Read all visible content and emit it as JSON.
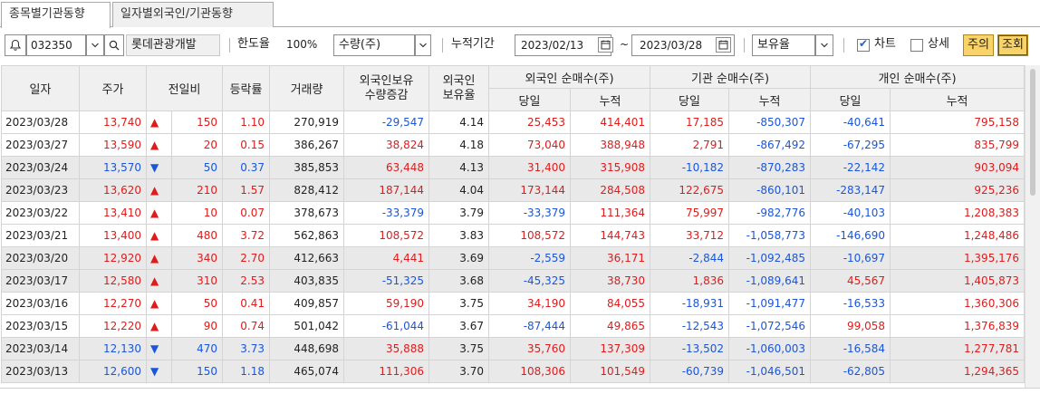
{
  "tabs": [
    "종목별기관동향",
    "일자별외국인/기관동향"
  ],
  "toolbar": {
    "code": "032350",
    "stock_name": "롯데관광개발",
    "limit_label": "한도율",
    "limit_value": "100%",
    "unit_select": "수량(주)",
    "accum_label": "누적기간",
    "date_from": "2023/02/13",
    "date_sep": "~",
    "date_to": "2023/03/28",
    "hold_select": "보유율",
    "chart_label": "차트",
    "detail_label": "상세",
    "week_button": "주의",
    "query_button": "조회",
    "chart_checked": true,
    "detail_checked": false
  },
  "headers": {
    "date": "일자",
    "price": "주가",
    "change": "전일비",
    "rate": "등락률",
    "volume": "거래량",
    "foreign_change": "외국인보유\n수량증감",
    "foreign_ratio": "외국인\n보유율",
    "foreign_net": "외국인 순매수(주)",
    "inst_net": "기관 순매수(주)",
    "indiv_net": "개인 순매수(주)",
    "daily": "당일",
    "cumul": "누적"
  },
  "rows": [
    {
      "date": "2023/03/28",
      "price": "13,740",
      "dir": "up",
      "change": "150",
      "rate": "1.10",
      "volume": "270,919",
      "fchg": "-29,547",
      "fratio": "4.14",
      "f_day": "25,453",
      "f_cum": "414,401",
      "i_day": "17,185",
      "i_cum": "-850,307",
      "p_day": "-40,641",
      "p_cum": "795,158",
      "shade": false
    },
    {
      "date": "2023/03/27",
      "price": "13,590",
      "dir": "up",
      "change": "20",
      "rate": "0.15",
      "volume": "386,267",
      "fchg": "38,824",
      "fratio": "4.18",
      "f_day": "73,040",
      "f_cum": "388,948",
      "i_day": "2,791",
      "i_cum": "-867,492",
      "p_day": "-67,295",
      "p_cum": "835,799",
      "shade": false
    },
    {
      "date": "2023/03/24",
      "price": "13,570",
      "dir": "down",
      "change": "50",
      "rate": "0.37",
      "volume": "385,853",
      "fchg": "63,448",
      "fratio": "4.13",
      "f_day": "31,400",
      "f_cum": "315,908",
      "i_day": "-10,182",
      "i_cum": "-870,283",
      "p_day": "-22,142",
      "p_cum": "903,094",
      "shade": true
    },
    {
      "date": "2023/03/23",
      "price": "13,620",
      "dir": "up",
      "change": "210",
      "rate": "1.57",
      "volume": "828,412",
      "fchg": "187,144",
      "fratio": "4.04",
      "f_day": "173,144",
      "f_cum": "284,508",
      "i_day": "122,675",
      "i_cum": "-860,101",
      "p_day": "-283,147",
      "p_cum": "925,236",
      "shade": true
    },
    {
      "date": "2023/03/22",
      "price": "13,410",
      "dir": "up",
      "change": "10",
      "rate": "0.07",
      "volume": "378,673",
      "fchg": "-33,379",
      "fratio": "3.79",
      "f_day": "-33,379",
      "f_cum": "111,364",
      "i_day": "75,997",
      "i_cum": "-982,776",
      "p_day": "-40,103",
      "p_cum": "1,208,383",
      "shade": false
    },
    {
      "date": "2023/03/21",
      "price": "13,400",
      "dir": "up",
      "change": "480",
      "rate": "3.72",
      "volume": "562,863",
      "fchg": "108,572",
      "fratio": "3.83",
      "f_day": "108,572",
      "f_cum": "144,743",
      "i_day": "33,712",
      "i_cum": "-1,058,773",
      "p_day": "-146,690",
      "p_cum": "1,248,486",
      "shade": false
    },
    {
      "date": "2023/03/20",
      "price": "12,920",
      "dir": "up",
      "change": "340",
      "rate": "2.70",
      "volume": "412,663",
      "fchg": "4,441",
      "fratio": "3.69",
      "f_day": "-2,559",
      "f_cum": "36,171",
      "i_day": "-2,844",
      "i_cum": "-1,092,485",
      "p_day": "-10,697",
      "p_cum": "1,395,176",
      "shade": true
    },
    {
      "date": "2023/03/17",
      "price": "12,580",
      "dir": "up",
      "change": "310",
      "rate": "2.53",
      "volume": "403,835",
      "fchg": "-51,325",
      "fratio": "3.68",
      "f_day": "-45,325",
      "f_cum": "38,730",
      "i_day": "1,836",
      "i_cum": "-1,089,641",
      "p_day": "45,567",
      "p_cum": "1,405,873",
      "shade": true
    },
    {
      "date": "2023/03/16",
      "price": "12,270",
      "dir": "up",
      "change": "50",
      "rate": "0.41",
      "volume": "409,857",
      "fchg": "59,190",
      "fratio": "3.75",
      "f_day": "34,190",
      "f_cum": "84,055",
      "i_day": "-18,931",
      "i_cum": "-1,091,477",
      "p_day": "-16,533",
      "p_cum": "1,360,306",
      "shade": false
    },
    {
      "date": "2023/03/15",
      "price": "12,220",
      "dir": "up",
      "change": "90",
      "rate": "0.74",
      "volume": "501,042",
      "fchg": "-61,044",
      "fratio": "3.67",
      "f_day": "-87,444",
      "f_cum": "49,865",
      "i_day": "-12,543",
      "i_cum": "-1,072,546",
      "p_day": "99,058",
      "p_cum": "1,376,839",
      "shade": false
    },
    {
      "date": "2023/03/14",
      "price": "12,130",
      "dir": "down",
      "change": "470",
      "rate": "3.73",
      "volume": "448,698",
      "fchg": "35,888",
      "fratio": "3.75",
      "f_day": "35,760",
      "f_cum": "137,309",
      "i_day": "-13,502",
      "i_cum": "-1,060,003",
      "p_day": "-16,584",
      "p_cum": "1,277,781",
      "shade": true
    },
    {
      "date": "2023/03/13",
      "price": "12,600",
      "dir": "down",
      "change": "150",
      "rate": "1.18",
      "volume": "465,074",
      "fchg": "111,306",
      "fratio": "3.70",
      "f_day": "108,306",
      "f_cum": "101,549",
      "i_day": "-60,739",
      "i_cum": "-1,046,501",
      "p_day": "-62,805",
      "p_cum": "1,294,365",
      "shade": true
    }
  ],
  "colors": {
    "up": "#e01b1b",
    "down": "#1a56db",
    "shade": "#e9e9e9",
    "header": "#f0f0f0"
  }
}
